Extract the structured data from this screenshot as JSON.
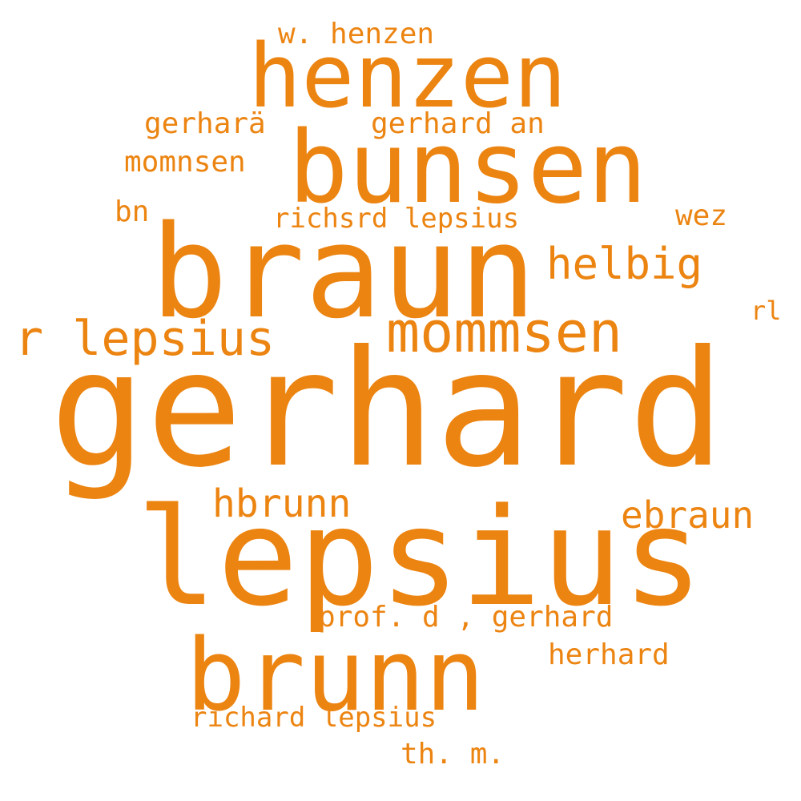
{
  "colors": {
    "word": "#ec8411",
    "background": "#ffffff"
  },
  "words": [
    "gerhard",
    "lepsius",
    "braun",
    "bunsen",
    "henzen",
    "brunn",
    "mommsen",
    "r lepsius",
    "helbig",
    "hbrunn",
    "ebraun",
    "prof. d , gerhard",
    "herhard",
    "richard lepsius",
    "th. m.",
    "w. henzen",
    "gerharä",
    "gerhard an",
    "momnsen",
    "bn",
    "richsrd lepsius",
    "wez",
    "rl"
  ]
}
